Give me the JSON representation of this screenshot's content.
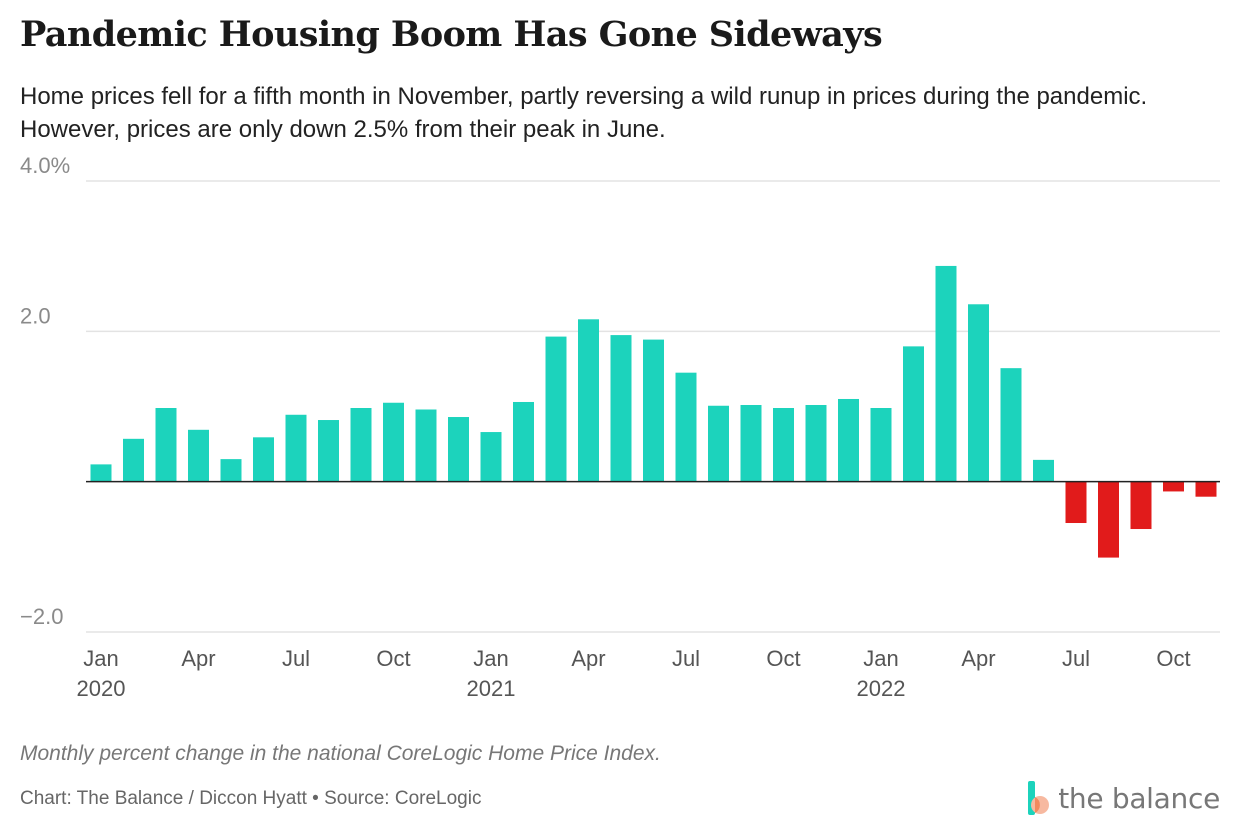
{
  "header": {
    "title": "Pandemic Housing Boom Has Gone Sideways",
    "subtitle": "Home prices fell for a fifth month in November, partly reversing a wild runup in prices during the pandemic. However, prices are only down 2.5% from their peak in June."
  },
  "footer": {
    "note": "Monthly percent change in the national CoreLogic Home Price Index.",
    "credit": "Chart: The Balance / Diccon Hyatt • Source: CoreLogic",
    "logo_text": "the balance"
  },
  "colors": {
    "positive": "#1cd3bc",
    "negative": "#e11b1b",
    "grid": "#e3e3e3",
    "zero_line": "#222222"
  },
  "chart_data": {
    "type": "bar",
    "title": "Pandemic Housing Boom Has Gone Sideways",
    "xlabel": "",
    "ylabel": "",
    "ylim": [
      -2.0,
      4.0
    ],
    "y_ticks": [
      {
        "value": 4.0,
        "label": "4.0%"
      },
      {
        "value": 2.0,
        "label": "2.0"
      },
      {
        "value": -2.0,
        "label": "−2.0"
      }
    ],
    "x_ticks": [
      {
        "index": 0,
        "label": "Jan",
        "year": "2020"
      },
      {
        "index": 3,
        "label": "Apr",
        "year": ""
      },
      {
        "index": 6,
        "label": "Jul",
        "year": ""
      },
      {
        "index": 9,
        "label": "Oct",
        "year": ""
      },
      {
        "index": 12,
        "label": "Jan",
        "year": "2021"
      },
      {
        "index": 15,
        "label": "Apr",
        "year": ""
      },
      {
        "index": 18,
        "label": "Jul",
        "year": ""
      },
      {
        "index": 21,
        "label": "Oct",
        "year": ""
      },
      {
        "index": 24,
        "label": "Jan",
        "year": "2022"
      },
      {
        "index": 27,
        "label": "Apr",
        "year": ""
      },
      {
        "index": 30,
        "label": "Jul",
        "year": ""
      },
      {
        "index": 33,
        "label": "Oct",
        "year": ""
      }
    ],
    "categories": [
      "2020-01",
      "2020-02",
      "2020-03",
      "2020-04",
      "2020-05",
      "2020-06",
      "2020-07",
      "2020-08",
      "2020-09",
      "2020-10",
      "2020-11",
      "2020-12",
      "2021-01",
      "2021-02",
      "2021-03",
      "2021-04",
      "2021-05",
      "2021-06",
      "2021-07",
      "2021-08",
      "2021-09",
      "2021-10",
      "2021-11",
      "2021-12",
      "2022-01",
      "2022-02",
      "2022-03",
      "2022-04",
      "2022-05",
      "2022-06",
      "2022-07",
      "2022-08",
      "2022-09",
      "2022-10",
      "2022-11"
    ],
    "values": [
      0.23,
      0.57,
      0.98,
      0.69,
      0.3,
      0.59,
      0.89,
      0.82,
      0.98,
      1.05,
      0.96,
      0.86,
      0.66,
      1.06,
      1.93,
      2.16,
      1.95,
      1.89,
      1.45,
      1.01,
      1.02,
      0.98,
      1.02,
      1.1,
      0.98,
      1.8,
      2.87,
      2.36,
      1.51,
      0.29,
      -0.55,
      -1.01,
      -0.63,
      -0.13,
      -0.2
    ]
  }
}
